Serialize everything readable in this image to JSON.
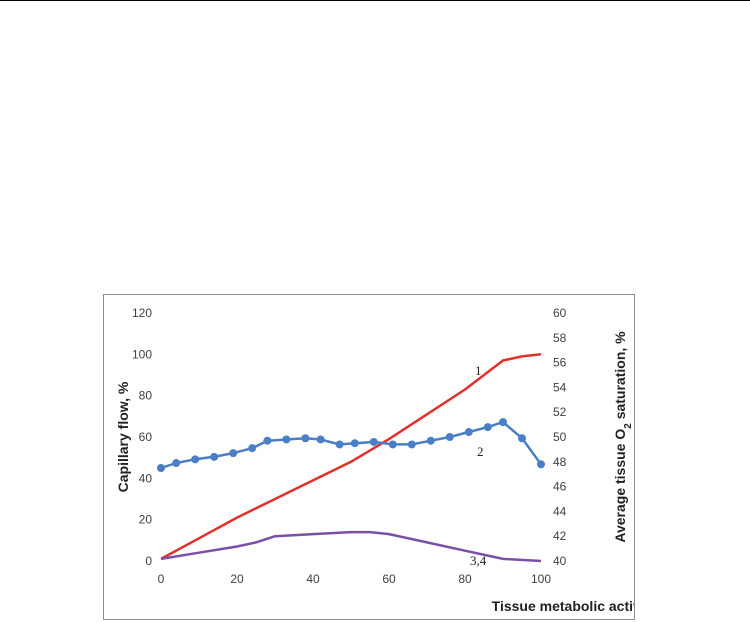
{
  "chart_data": {
    "type": "line",
    "title": "",
    "xlabel": "Tissue metabolic activity, %",
    "ylabel": "Capillary flow, %",
    "y2label_parts": [
      "Average tissue O",
      "2",
      " saturation, %"
    ],
    "xlim": [
      0,
      100
    ],
    "ylim": [
      0,
      120
    ],
    "y2lim": [
      40,
      60
    ],
    "x_ticks": [
      "0",
      "20",
      "40",
      "60",
      "80",
      "100"
    ],
    "y_ticks": [
      "0",
      "20",
      "40",
      "60",
      "80",
      "100",
      "120"
    ],
    "y2_ticks": [
      "40",
      "42",
      "44",
      "46",
      "48",
      "50",
      "52",
      "54",
      "56",
      "58",
      "60"
    ],
    "grid": false,
    "legend": "none",
    "series": [
      {
        "label": "1",
        "axis": "left",
        "color": "#e0312b",
        "markers": false,
        "x": [
          0,
          10,
          20,
          30,
          40,
          50,
          60,
          70,
          80,
          90,
          95,
          100
        ],
        "y": [
          1,
          11,
          21,
          30,
          39,
          48,
          59,
          71,
          83,
          97,
          99,
          100
        ]
      },
      {
        "label": "2",
        "axis": "right",
        "color": "#4a7ec6",
        "markers": true,
        "x": [
          0,
          4,
          9,
          14,
          19,
          24,
          28,
          33,
          38,
          42,
          47,
          51,
          56,
          61,
          66,
          71,
          76,
          81,
          86,
          90,
          95,
          100
        ],
        "y": [
          47.5,
          47.9,
          48.2,
          48.4,
          48.7,
          49.1,
          49.7,
          49.8,
          49.9,
          49.8,
          49.4,
          49.5,
          49.6,
          49.4,
          49.4,
          49.7,
          50.0,
          50.4,
          50.8,
          51.2,
          49.9,
          47.8
        ]
      },
      {
        "label": "3,4",
        "axis": "left",
        "color": "#7b4fa8",
        "markers": false,
        "x": [
          0,
          10,
          20,
          25,
          30,
          40,
          50,
          55,
          60,
          70,
          80,
          90,
          100
        ],
        "y": [
          1,
          4,
          7,
          9,
          12,
          13,
          14,
          14,
          13,
          9,
          5,
          1,
          0
        ]
      }
    ]
  }
}
